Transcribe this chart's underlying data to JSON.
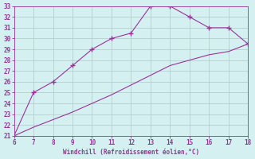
{
  "x_upper": [
    6,
    7,
    8,
    9,
    10,
    11,
    12,
    13,
    14,
    15,
    16,
    17,
    18
  ],
  "y_upper": [
    21,
    25,
    26,
    27.5,
    29,
    30,
    30.5,
    33,
    33,
    32,
    31,
    31,
    29.5
  ],
  "x_lower": [
    6,
    7,
    8,
    9,
    10,
    11,
    12,
    13,
    14,
    15,
    16,
    17,
    18
  ],
  "y_lower": [
    21,
    21.8,
    22.5,
    23.2,
    24.0,
    24.8,
    25.7,
    26.6,
    27.5,
    28.0,
    28.5,
    28.8,
    29.5
  ],
  "line_color": "#993399",
  "marker": "+",
  "markersize": 4,
  "linewidth": 0.8,
  "xlabel": "Windchill (Refroidissement éolien,°C)",
  "xlabel_color": "#993399",
  "bg_color": "#d4f0f0",
  "grid_color": "#b0c8c8",
  "tick_color": "#993399",
  "xlim": [
    6,
    18
  ],
  "ylim": [
    21,
    33
  ],
  "xticks": [
    6,
    7,
    8,
    9,
    10,
    11,
    12,
    13,
    14,
    15,
    16,
    17,
    18
  ],
  "yticks": [
    21,
    22,
    23,
    24,
    25,
    26,
    27,
    28,
    29,
    30,
    31,
    32,
    33
  ]
}
